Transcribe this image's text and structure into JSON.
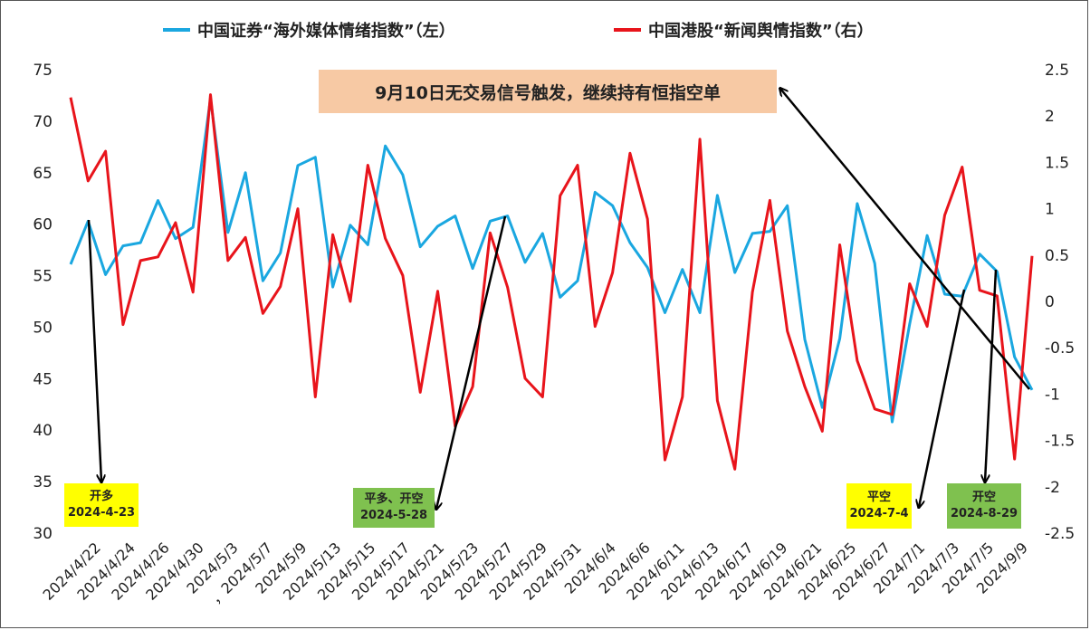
{
  "legend": {
    "left": "中国证券“海外媒体情绪指数”（左）",
    "right": "中国港股“新闻舆情指数”（右）"
  },
  "callout": "9月10日无交易信号触发，继续持有恒指空单",
  "tags": [
    {
      "line1": "开多",
      "line2": "2024-4-23",
      "color": "yellow"
    },
    {
      "line1": "平多、开空",
      "line2": "2024-5-28",
      "color": "green"
    },
    {
      "line1": "平空",
      "line2": "2024-7-4",
      "color": "yellow"
    },
    {
      "line1": "开空",
      "line2": "2024-8-29",
      "color": "green"
    }
  ],
  "chart_data": {
    "type": "line",
    "x_tick_labels": [
      "2024/4/22",
      "2024/4/24",
      "2024/4/26",
      "2024/4/30",
      "2024/5/3",
      "，2024/5/7",
      "2024/5/9",
      "2024/5/13",
      "2024/5/15",
      "2024/5/17",
      "2024/5/21",
      "2024/5/23",
      "2024/5/27",
      "2024/5/29",
      "2024/5/31",
      "2024/6/4",
      "2024/6/6",
      "2024/6/11",
      "2024/6/13",
      "2024/6/17",
      "2024/6/19",
      "2024/6/21",
      "2024/6/25",
      "2024/6/27",
      "2024/7/1",
      "2024/7/3",
      "2024/7/5",
      "2024/9/9"
    ],
    "left_axis": {
      "min": 30,
      "max": 75,
      "ticks": [
        "30",
        "35",
        "40",
        "45",
        "50",
        "55",
        "60",
        "65",
        "70",
        "75"
      ]
    },
    "right_axis": {
      "min": -2.5,
      "max": 2.5,
      "ticks": [
        "-2.5",
        "-2",
        "-1.5",
        "-1",
        "-0.5",
        "0",
        "0.5",
        "1",
        "1.5",
        "2",
        "2.5"
      ]
    },
    "series": [
      {
        "name": "中国证券“海外媒体情绪指数”（左）",
        "axis": "left",
        "color": "#1aa7e0",
        "values": [
          56.1,
          60.3,
          55.1,
          57.9,
          58.2,
          62.3,
          58.6,
          59.7,
          72.2,
          59.2,
          65.0,
          54.5,
          57.2,
          65.7,
          66.5,
          53.9,
          59.9,
          58.0,
          67.6,
          64.8,
          57.8,
          59.8,
          60.8,
          55.7,
          60.3,
          60.8,
          56.3,
          59.1,
          52.9,
          54.5,
          63.1,
          61.8,
          58.2,
          55.8,
          51.4,
          55.6,
          51.4,
          62.8,
          55.3,
          59.1,
          59.3,
          61.8,
          48.8,
          42.2,
          48.9,
          62.0,
          56.2,
          40.8,
          50.3,
          58.9,
          53.2,
          53.0,
          57.1,
          55.4,
          47.1,
          43.9
        ]
      },
      {
        "name": "中国港股“新闻舆情指数”（右）",
        "axis": "right",
        "color": "#e8141b",
        "values": [
          2.2,
          1.3,
          1.62,
          -0.25,
          0.44,
          0.48,
          0.85,
          0.1,
          2.23,
          0.44,
          0.69,
          -0.13,
          0.16,
          1.0,
          -1.03,
          0.72,
          0.0,
          1.47,
          0.68,
          0.28,
          -0.98,
          0.11,
          -1.35,
          -0.92,
          0.74,
          0.15,
          -0.83,
          -1.03,
          1.14,
          1.47,
          -0.27,
          0.31,
          1.6,
          0.89,
          -1.71,
          -1.03,
          1.75,
          -1.07,
          -1.81,
          0.1,
          1.09,
          -0.32,
          -0.92,
          -1.4,
          0.61,
          -0.64,
          -1.16,
          -1.22,
          0.19,
          -0.27,
          0.93,
          1.45,
          0.12,
          0.06,
          -1.7,
          0.49
        ]
      }
    ],
    "grid": false,
    "legend_position": "top"
  }
}
